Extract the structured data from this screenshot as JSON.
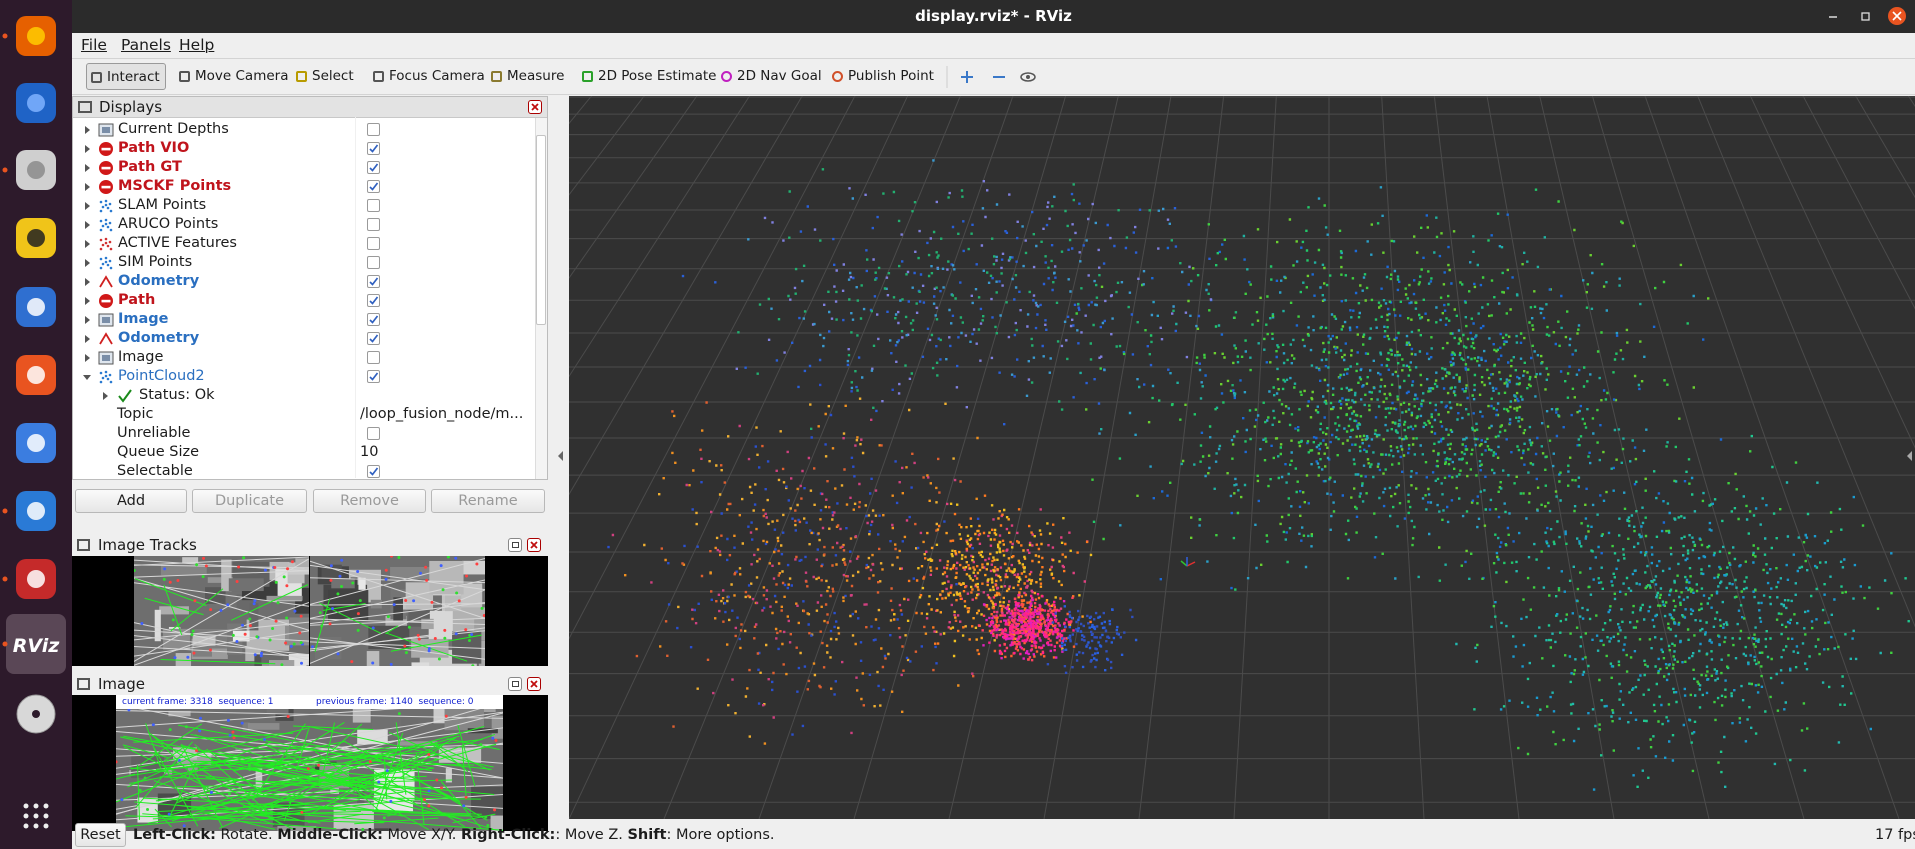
{
  "window": {
    "title": "display.rviz* - RViz"
  },
  "launcher": {
    "label": "RViz"
  },
  "menu": [
    "File",
    "Panels",
    "Help"
  ],
  "toolbar": [
    "Interact",
    "Move Camera",
    "Select",
    "Focus Camera",
    "Measure",
    "2D Pose Estimate",
    "2D Nav Goal",
    "Publish Point"
  ],
  "displays_panel": {
    "title": "Displays",
    "items": [
      {
        "name": "Current Depths",
        "icon": "image",
        "checked": false
      },
      {
        "name": "Path VIO",
        "icon": "error",
        "checked": true,
        "color": "#c0141c",
        "bold": true
      },
      {
        "name": "Path GT",
        "icon": "error",
        "checked": true,
        "color": "#c0141c",
        "bold": true
      },
      {
        "name": "MSCKF Points",
        "icon": "error",
        "checked": true,
        "color": "#c0141c",
        "bold": true
      },
      {
        "name": "SLAM Points",
        "icon": "points",
        "checked": false
      },
      {
        "name": "ARUCO Points",
        "icon": "points",
        "checked": false
      },
      {
        "name": "ACTIVE Features",
        "icon": "points-red",
        "checked": false
      },
      {
        "name": "SIM Points",
        "icon": "points",
        "checked": false
      },
      {
        "name": "Odometry",
        "icon": "odometry",
        "checked": true,
        "color": "#2a6fc0",
        "bold": true
      },
      {
        "name": "Path",
        "icon": "error",
        "checked": true,
        "color": "#c0141c",
        "bold": true
      },
      {
        "name": "Image",
        "icon": "image",
        "checked": true,
        "color": "#2a6fc0",
        "bold": true
      },
      {
        "name": "Odometry",
        "icon": "odometry",
        "checked": true,
        "color": "#2a6fc0",
        "bold": true
      },
      {
        "name": "Image",
        "icon": "image",
        "checked": false
      },
      {
        "name": "PointCloud2",
        "icon": "points",
        "checked": true,
        "color": "#2a6fc0",
        "expanded": true
      }
    ],
    "properties": [
      {
        "name": "Status: Ok",
        "status": true
      },
      {
        "name": "Topic",
        "value": "/loop_fusion_node/m..."
      },
      {
        "name": "Unreliable",
        "checked": false
      },
      {
        "name": "Queue Size",
        "value": "10"
      },
      {
        "name": "Selectable",
        "checked": true
      }
    ],
    "buttons": [
      "Add",
      "Duplicate",
      "Remove",
      "Rename"
    ]
  },
  "image_tracks_panel": {
    "title": "Image Tracks"
  },
  "image_panel": {
    "title": "Image",
    "overlay": [
      "current frame: 3318  sequence: 1",
      "previous frame: 1140  sequence: 0"
    ]
  },
  "status_bar": {
    "button": "Reset",
    "hint": [
      {
        "text": "Left-Click:",
        "bold": true
      },
      {
        "text": " Rotate. "
      },
      {
        "text": "Middle-Click:",
        "bold": true
      },
      {
        "text": " Move X/Y. "
      },
      {
        "text": "Right-Click:",
        "bold": true
      },
      {
        "text": ": Move Z. "
      },
      {
        "text": "Shift",
        "bold": true
      },
      {
        "text": ": More options."
      }
    ],
    "fps": "17 fps"
  }
}
